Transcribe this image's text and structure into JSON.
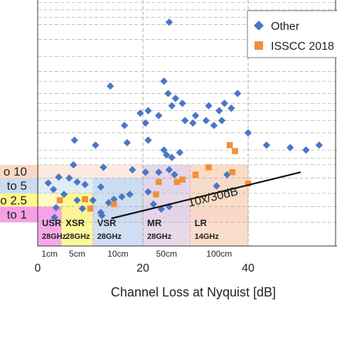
{
  "chart_data": {
    "type": "scatter",
    "xlabel": "Channel Loss at Nyquist [dB]",
    "x_ticks": [
      0,
      20,
      40
    ],
    "xlim": [
      -7,
      57
    ],
    "ylim": [
      0,
      5
    ],
    "legend": {
      "placement": "top-right",
      "entries": [
        {
          "name": "Other",
          "color": "#4a77c5",
          "marker": "diamond"
        },
        {
          "name": "ISSCC 2018",
          "color": "#f0903a",
          "marker": "square"
        }
      ]
    },
    "y_band_labels": [
      {
        "label": "o 10",
        "y_top": 1.65,
        "y_bottom": 1.38,
        "color": "#fad9c4"
      },
      {
        "label": "to 5",
        "y_top": 1.38,
        "y_bottom": 1.07,
        "color": "#c9dcf2"
      },
      {
        "label": "o 2.5",
        "y_top": 1.07,
        "y_bottom": 0.8,
        "color": "#fcf88e"
      },
      {
        "label": "to 1",
        "y_top": 0.8,
        "y_bottom": 0.48,
        "color": "#f5a0e5"
      }
    ],
    "reach_regions": [
      {
        "name": "USR",
        "freq": "28GHz",
        "distance": "1cm",
        "x_end": 4.5,
        "y_top": 0.8,
        "color": "#f5a0e5"
      },
      {
        "name": "XSR",
        "freq": "28GHz",
        "distance": "5cm",
        "x_end": 10.5,
        "y_top": 1.07,
        "color": "#fcf88e"
      },
      {
        "name": "VSR",
        "freq": "28GHz",
        "distance": "10cm",
        "x_end": 20,
        "y_top": 1.38,
        "color": "#c9dcf2"
      },
      {
        "name": "MR",
        "freq": "28GHz",
        "distance": "50cm",
        "x_end": 29,
        "y_top": 1.65,
        "color": "#e2d5e8"
      },
      {
        "name": "LR",
        "freq": "14GHz",
        "distance": "100cm",
        "x_end": 40,
        "y_top": 1.65,
        "color": "#fad9c4"
      }
    ],
    "trend_line": {
      "label": "10x/30dB",
      "x": [
        14,
        50
      ],
      "y": [
        0.56,
        1.5
      ]
    },
    "series": [
      {
        "name": "Other",
        "points": [
          [
            25,
            4.55
          ],
          [
            13.8,
            3.25
          ],
          [
            24,
            3.35
          ],
          [
            24.8,
            3.1
          ],
          [
            26.2,
            3.0
          ],
          [
            27.5,
            2.9
          ],
          [
            32.5,
            2.85
          ],
          [
            35.5,
            2.9
          ],
          [
            38,
            3.1
          ],
          [
            34.5,
            2.75
          ],
          [
            36.8,
            2.8
          ],
          [
            19.5,
            2.7
          ],
          [
            21,
            2.75
          ],
          [
            23,
            2.65
          ],
          [
            25.5,
            2.85
          ],
          [
            30,
            2.65
          ],
          [
            28,
            2.55
          ],
          [
            29.5,
            2.5
          ],
          [
            32,
            2.55
          ],
          [
            33.5,
            2.45
          ],
          [
            35,
            2.55
          ],
          [
            20.5,
            2.5
          ],
          [
            16.5,
            2.45
          ],
          [
            7,
            2.15
          ],
          [
            11,
            2.05
          ],
          [
            17,
            2.1
          ],
          [
            21,
            2.15
          ],
          [
            24,
            1.95
          ],
          [
            24.5,
            1.85
          ],
          [
            25.5,
            1.8
          ],
          [
            27,
            1.9
          ],
          [
            40,
            2.3
          ],
          [
            43.5,
            2.05
          ],
          [
            48,
            2.0
          ],
          [
            51,
            1.95
          ],
          [
            53.5,
            2.05
          ],
          [
            57.5,
            1.95
          ],
          [
            6.8,
            1.65
          ],
          [
            12.5,
            1.6
          ],
          [
            18,
            1.55
          ],
          [
            20.5,
            1.5
          ],
          [
            23,
            1.5
          ],
          [
            25,
            1.55
          ],
          [
            26,
            1.45
          ],
          [
            4,
            1.4
          ],
          [
            6,
            1.38
          ],
          [
            7.5,
            1.3
          ],
          [
            9,
            1.25
          ],
          [
            12,
            1.2
          ],
          [
            17.5,
            1.05
          ],
          [
            21,
            1.1
          ],
          [
            2,
            1.28
          ],
          [
            3,
            1.15
          ],
          [
            5,
            1.05
          ],
          [
            7.5,
            0.93
          ],
          [
            10.5,
            0.93
          ],
          [
            13.5,
            0.88
          ],
          [
            14.5,
            0.95
          ],
          [
            16,
            1.0
          ],
          [
            22,
            0.85
          ],
          [
            3.5,
            0.78
          ],
          [
            8.5,
            0.76
          ],
          [
            12,
            0.68
          ],
          [
            12.2,
            0.62
          ],
          [
            3.2,
            0.58
          ],
          [
            23.5,
            0.75
          ],
          [
            25,
            0.8
          ],
          [
            34,
            1.22
          ],
          [
            36,
            1.45
          ]
        ]
      },
      {
        "name": "ISSCC 2018",
        "points": [
          [
            36.5,
            2.05
          ],
          [
            37.5,
            1.93
          ],
          [
            32.5,
            1.6
          ],
          [
            37,
            1.5
          ],
          [
            40,
            1.27
          ],
          [
            9,
            0.95
          ],
          [
            4.2,
            0.93
          ],
          [
            10,
            0.76
          ],
          [
            23,
            1.3
          ],
          [
            22.5,
            1.05
          ],
          [
            14.5,
            0.85
          ],
          [
            30,
            1.45
          ],
          [
            27.5,
            1.35
          ],
          [
            26.5,
            1.3
          ]
        ]
      }
    ]
  }
}
